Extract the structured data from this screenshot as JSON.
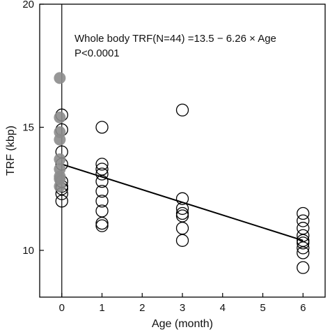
{
  "chart_data": {
    "type": "scatter",
    "xlabel": "Age (month)",
    "ylabel": "TRF (kbp)",
    "xlim": [
      -0.55,
      6.55
    ],
    "ylim": [
      8.1,
      20
    ],
    "xticks": [
      0,
      1,
      2,
      3,
      4,
      5,
      6
    ],
    "yticks": [
      10,
      15,
      20
    ],
    "grid": false,
    "annotation": {
      "line1": "Whole body TRF(N=44) =13.5 − 6.26 × Age",
      "line2": "P<0.0001"
    },
    "regression": {
      "x": [
        0,
        6
      ],
      "y": [
        13.5,
        10.4
      ]
    },
    "vertical_line_x": 0,
    "series": [
      {
        "marker": "open-circle",
        "color": "#000000",
        "points": [
          {
            "x": 0,
            "y": 15.5
          },
          {
            "x": 0,
            "y": 14.9
          },
          {
            "x": 0,
            "y": 14.0
          },
          {
            "x": 0,
            "y": 13.5
          },
          {
            "x": 0,
            "y": 12.8
          },
          {
            "x": 0,
            "y": 12.6
          },
          {
            "x": 0,
            "y": 12.5
          },
          {
            "x": 0,
            "y": 12.3
          },
          {
            "x": 0,
            "y": 12.0
          },
          {
            "x": 1,
            "y": 15.0
          },
          {
            "x": 1,
            "y": 13.5
          },
          {
            "x": 1,
            "y": 13.3
          },
          {
            "x": 1,
            "y": 13.1
          },
          {
            "x": 1,
            "y": 12.8
          },
          {
            "x": 1,
            "y": 12.4
          },
          {
            "x": 1,
            "y": 12.0
          },
          {
            "x": 1,
            "y": 11.6
          },
          {
            "x": 1,
            "y": 11.1
          },
          {
            "x": 1,
            "y": 11.0
          },
          {
            "x": 3,
            "y": 15.7
          },
          {
            "x": 3,
            "y": 12.1
          },
          {
            "x": 3,
            "y": 11.7
          },
          {
            "x": 3,
            "y": 11.5
          },
          {
            "x": 3,
            "y": 11.4
          },
          {
            "x": 3,
            "y": 10.9
          },
          {
            "x": 3,
            "y": 10.4
          },
          {
            "x": 6,
            "y": 11.5
          },
          {
            "x": 6,
            "y": 11.2
          },
          {
            "x": 6,
            "y": 10.9
          },
          {
            "x": 6,
            "y": 10.6
          },
          {
            "x": 6,
            "y": 10.4
          },
          {
            "x": 6,
            "y": 10.3
          },
          {
            "x": 6,
            "y": 10.1
          },
          {
            "x": 6,
            "y": 9.9
          },
          {
            "x": 6,
            "y": 9.3
          }
        ]
      },
      {
        "marker": "filled-circle",
        "color": "#8c8c8c",
        "points": [
          {
            "x": -0.05,
            "y": 17.0
          },
          {
            "x": -0.05,
            "y": 15.4
          },
          {
            "x": -0.05,
            "y": 14.8
          },
          {
            "x": -0.05,
            "y": 14.5
          },
          {
            "x": -0.05,
            "y": 13.7
          },
          {
            "x": -0.05,
            "y": 13.3
          },
          {
            "x": -0.05,
            "y": 13.0
          },
          {
            "x": -0.05,
            "y": 12.9
          },
          {
            "x": -0.05,
            "y": 12.6
          }
        ]
      }
    ]
  }
}
